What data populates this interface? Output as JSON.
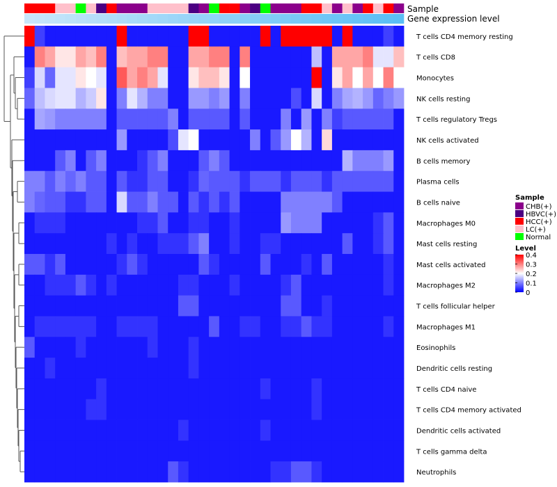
{
  "chart_data": {
    "type": "heatmap",
    "annotations": {
      "sample_label": "Sample",
      "gene_label": "Gene expression level",
      "sample_groups": [
        "HCC(+)",
        "HCC(+)",
        "HCC(+)",
        "LC(+)",
        "LC(+)",
        "Normal",
        "LC(+)",
        "HBVC(+)",
        "HCC(+)",
        "CHB(+)",
        "CHB(+)",
        "CHB(+)",
        "LC(+)",
        "LC(+)",
        "LC(+)",
        "LC(+)",
        "HBVC(+)",
        "CHB(+)",
        "Normal",
        "HCC(+)",
        "HCC(+)",
        "CHB(+)",
        "HBVC(+)",
        "Normal",
        "CHB(+)",
        "CHB(+)",
        "CHB(+)",
        "HCC(+)",
        "HCC(+)",
        "LC(+)",
        "CHB(+)",
        "LC(+)",
        "CHB(+)",
        "HCC(+)",
        "LC(+)",
        "HCC(+)",
        "CHB(+)"
      ],
      "gene_level": [
        0.05,
        0.05,
        0.05,
        0.05,
        0.05,
        0.05,
        0.05,
        0.05,
        0.05,
        0.05,
        0.05,
        0.05,
        0.05,
        0.05,
        0.05,
        0.05,
        0.05,
        0.05,
        0.05,
        0.05,
        0.05,
        0.05,
        0.05,
        0.05,
        0.05,
        0.05,
        0.05,
        0.05,
        0.05,
        0.05,
        0.05,
        0.05,
        0.05,
        0.05,
        0.05,
        0.05,
        0.05
      ]
    },
    "rows": [
      "T cells CD4 memory resting",
      "T cells CD8",
      "Monocytes",
      "NK cells resting",
      "T cells regulatory  Tregs",
      "NK cells activated",
      "B cells memory",
      "Plasma cells",
      "B cells naive",
      "Macrophages M0",
      "Mast cells resting",
      "Mast cells activated",
      "Macrophages M2",
      "T cells follicular helper",
      "Macrophages M1",
      "Eosinophils",
      "Dendritic cells resting",
      "T cells CD4 naive",
      "T cells CD4 memory activated",
      "Dendritic cells activated",
      "T cells gamma delta",
      "Neutrophils"
    ],
    "values": [
      [
        0.4,
        0.05,
        0.02,
        0.02,
        0.02,
        0.02,
        0.02,
        0.02,
        0.02,
        0.4,
        0.02,
        0.02,
        0.02,
        0.02,
        0.02,
        0.02,
        0.4,
        0.4,
        0.02,
        0.02,
        0.02,
        0.02,
        0.02,
        0.4,
        0.02,
        0.4,
        0.4,
        0.4,
        0.4,
        0.4,
        0.02,
        0.4,
        0.02,
        0.02,
        0.02,
        0.05,
        0.02
      ],
      [
        0.02,
        0.3,
        0.27,
        0.22,
        0.22,
        0.27,
        0.25,
        0.3,
        0.02,
        0.25,
        0.27,
        0.27,
        0.3,
        0.3,
        0.02,
        0.02,
        0.27,
        0.27,
        0.3,
        0.3,
        0.02,
        0.3,
        0.02,
        0.02,
        0.02,
        0.02,
        0.02,
        0.02,
        0.15,
        0.02,
        0.27,
        0.27,
        0.27,
        0.3,
        0.18,
        0.18,
        0.25
      ],
      [
        0.05,
        0.17,
        0.08,
        0.18,
        0.18,
        0.22,
        0.2,
        0.18,
        0.02,
        0.33,
        0.27,
        0.3,
        0.27,
        0.18,
        0.02,
        0.02,
        0.22,
        0.25,
        0.25,
        0.22,
        0.02,
        0.2,
        0.02,
        0.02,
        0.02,
        0.02,
        0.02,
        0.02,
        0.4,
        0.02,
        0.22,
        0.27,
        0.2,
        0.27,
        0.2,
        0.3,
        0.2
      ],
      [
        0.08,
        0.15,
        0.17,
        0.18,
        0.18,
        0.14,
        0.16,
        0.22,
        0.02,
        0.1,
        0.18,
        0.14,
        0.1,
        0.1,
        0.02,
        0.02,
        0.12,
        0.12,
        0.1,
        0.12,
        0.02,
        0.1,
        0.02,
        0.02,
        0.02,
        0.02,
        0.06,
        0.02,
        0.17,
        0.02,
        0.1,
        0.13,
        0.14,
        0.12,
        0.08,
        0.1,
        0.12
      ],
      [
        0.02,
        0.13,
        0.12,
        0.1,
        0.1,
        0.1,
        0.1,
        0.1,
        0.02,
        0.07,
        0.07,
        0.07,
        0.07,
        0.07,
        0.1,
        0.02,
        0.07,
        0.07,
        0.07,
        0.07,
        0.02,
        0.07,
        0.02,
        0.02,
        0.02,
        0.1,
        0.02,
        0.12,
        0.02,
        0.1,
        0.05,
        0.07,
        0.07,
        0.07,
        0.07,
        0.07,
        0.02
      ],
      [
        0.02,
        0.02,
        0.02,
        0.02,
        0.02,
        0.02,
        0.02,
        0.02,
        0.02,
        0.12,
        0.02,
        0.02,
        0.02,
        0.02,
        0.06,
        0.18,
        0.2,
        0.02,
        0.02,
        0.02,
        0.02,
        0.02,
        0.1,
        0.02,
        0.07,
        0.12,
        0.2,
        0.14,
        0.02,
        0.23,
        0.02,
        0.02,
        0.02,
        0.02,
        0.02,
        0.02,
        0.02
      ],
      [
        0.02,
        0.02,
        0.02,
        0.07,
        0.1,
        0.02,
        0.07,
        0.1,
        0.02,
        0.02,
        0.02,
        0.04,
        0.07,
        0.1,
        0.02,
        0.02,
        0.02,
        0.07,
        0.1,
        0.07,
        0.02,
        0.02,
        0.02,
        0.02,
        0.02,
        0.02,
        0.02,
        0.02,
        0.02,
        0.02,
        0.02,
        0.14,
        0.1,
        0.1,
        0.1,
        0.12,
        0.02
      ],
      [
        0.1,
        0.1,
        0.07,
        0.1,
        0.08,
        0.1,
        0.07,
        0.07,
        0.02,
        0.07,
        0.04,
        0.04,
        0.07,
        0.07,
        0.02,
        0.02,
        0.04,
        0.08,
        0.07,
        0.07,
        0.07,
        0.04,
        0.07,
        0.07,
        0.07,
        0.04,
        0.07,
        0.07,
        0.07,
        0.04,
        0.07,
        0.07,
        0.07,
        0.07,
        0.07,
        0.07,
        0.02
      ],
      [
        0.1,
        0.08,
        0.07,
        0.07,
        0.04,
        0.04,
        0.07,
        0.07,
        0.02,
        0.17,
        0.07,
        0.07,
        0.1,
        0.07,
        0.07,
        0.02,
        0.07,
        0.04,
        0.07,
        0.04,
        0.07,
        0.02,
        0.02,
        0.02,
        0.02,
        0.1,
        0.1,
        0.1,
        0.1,
        0.1,
        0.07,
        0.02,
        0.02,
        0.02,
        0.02,
        0.02,
        0.02
      ],
      [
        0.02,
        0.04,
        0.04,
        0.04,
        0.02,
        0.02,
        0.02,
        0.02,
        0.02,
        0.02,
        0.02,
        0.04,
        0.04,
        0.07,
        0.02,
        0.02,
        0.04,
        0.04,
        0.02,
        0.02,
        0.04,
        0.02,
        0.02,
        0.02,
        0.02,
        0.12,
        0.1,
        0.1,
        0.1,
        0.02,
        0.02,
        0.02,
        0.02,
        0.02,
        0.04,
        0.07,
        0.02
      ],
      [
        0.02,
        0.02,
        0.02,
        0.02,
        0.02,
        0.02,
        0.02,
        0.02,
        0.04,
        0.02,
        0.04,
        0.02,
        0.02,
        0.04,
        0.04,
        0.04,
        0.07,
        0.1,
        0.02,
        0.02,
        0.04,
        0.02,
        0.02,
        0.04,
        0.04,
        0.02,
        0.02,
        0.02,
        0.02,
        0.02,
        0.02,
        0.07,
        0.02,
        0.02,
        0.04,
        0.07,
        0.02
      ],
      [
        0.07,
        0.07,
        0.04,
        0.07,
        0.02,
        0.02,
        0.02,
        0.02,
        0.02,
        0.04,
        0.07,
        0.04,
        0.02,
        0.02,
        0.02,
        0.02,
        0.02,
        0.07,
        0.04,
        0.02,
        0.02,
        0.02,
        0.02,
        0.07,
        0.02,
        0.02,
        0.02,
        0.04,
        0.02,
        0.07,
        0.02,
        0.02,
        0.02,
        0.02,
        0.02,
        0.04,
        0.02
      ],
      [
        0.02,
        0.02,
        0.04,
        0.04,
        0.04,
        0.07,
        0.04,
        0.02,
        0.04,
        0.02,
        0.02,
        0.02,
        0.02,
        0.02,
        0.02,
        0.04,
        0.04,
        0.02,
        0.02,
        0.02,
        0.04,
        0.02,
        0.02,
        0.02,
        0.02,
        0.04,
        0.07,
        0.02,
        0.02,
        0.02,
        0.02,
        0.02,
        0.02,
        0.02,
        0.02,
        0.04,
        0.02
      ],
      [
        0.02,
        0.02,
        0.02,
        0.02,
        0.02,
        0.02,
        0.02,
        0.02,
        0.02,
        0.02,
        0.02,
        0.02,
        0.02,
        0.02,
        0.02,
        0.07,
        0.07,
        0.02,
        0.02,
        0.02,
        0.02,
        0.02,
        0.02,
        0.02,
        0.02,
        0.07,
        0.07,
        0.02,
        0.02,
        0.04,
        0.02,
        0.02,
        0.02,
        0.02,
        0.02,
        0.02,
        0.02
      ],
      [
        0.02,
        0.04,
        0.04,
        0.04,
        0.04,
        0.04,
        0.04,
        0.02,
        0.02,
        0.04,
        0.04,
        0.04,
        0.04,
        0.02,
        0.02,
        0.02,
        0.02,
        0.02,
        0.07,
        0.02,
        0.02,
        0.04,
        0.04,
        0.02,
        0.02,
        0.04,
        0.04,
        0.07,
        0.04,
        0.04,
        0.02,
        0.02,
        0.02,
        0.02,
        0.02,
        0.04,
        0.02
      ],
      [
        0.07,
        0.02,
        0.02,
        0.02,
        0.02,
        0.04,
        0.02,
        0.02,
        0.02,
        0.02,
        0.02,
        0.02,
        0.04,
        0.02,
        0.02,
        0.02,
        0.04,
        0.02,
        0.02,
        0.02,
        0.02,
        0.02,
        0.02,
        0.02,
        0.02,
        0.02,
        0.02,
        0.02,
        0.02,
        0.02,
        0.02,
        0.02,
        0.02,
        0.02,
        0.02,
        0.02,
        0.02
      ],
      [
        0.02,
        0.02,
        0.04,
        0.02,
        0.02,
        0.02,
        0.02,
        0.02,
        0.02,
        0.02,
        0.02,
        0.02,
        0.02,
        0.02,
        0.02,
        0.02,
        0.04,
        0.02,
        0.02,
        0.02,
        0.02,
        0.02,
        0.02,
        0.02,
        0.02,
        0.02,
        0.02,
        0.02,
        0.02,
        0.02,
        0.02,
        0.02,
        0.02,
        0.02,
        0.02,
        0.02,
        0.02
      ],
      [
        0.02,
        0.02,
        0.02,
        0.02,
        0.02,
        0.02,
        0.02,
        0.04,
        0.02,
        0.02,
        0.02,
        0.02,
        0.02,
        0.02,
        0.02,
        0.02,
        0.02,
        0.02,
        0.02,
        0.02,
        0.02,
        0.02,
        0.02,
        0.04,
        0.02,
        0.02,
        0.02,
        0.02,
        0.04,
        0.02,
        0.02,
        0.02,
        0.02,
        0.02,
        0.02,
        0.02,
        0.02
      ],
      [
        0.02,
        0.02,
        0.02,
        0.02,
        0.02,
        0.02,
        0.04,
        0.04,
        0.02,
        0.02,
        0.02,
        0.02,
        0.02,
        0.02,
        0.02,
        0.02,
        0.02,
        0.02,
        0.02,
        0.02,
        0.02,
        0.02,
        0.02,
        0.02,
        0.02,
        0.02,
        0.02,
        0.02,
        0.04,
        0.02,
        0.02,
        0.02,
        0.02,
        0.02,
        0.02,
        0.02,
        0.02
      ],
      [
        0.02,
        0.02,
        0.02,
        0.02,
        0.02,
        0.02,
        0.02,
        0.02,
        0.02,
        0.02,
        0.02,
        0.02,
        0.02,
        0.02,
        0.02,
        0.04,
        0.02,
        0.02,
        0.02,
        0.02,
        0.02,
        0.02,
        0.02,
        0.04,
        0.02,
        0.02,
        0.02,
        0.02,
        0.02,
        0.02,
        0.02,
        0.02,
        0.02,
        0.02,
        0.02,
        0.02,
        0.02
      ],
      [
        0.02,
        0.02,
        0.02,
        0.02,
        0.02,
        0.02,
        0.02,
        0.02,
        0.02,
        0.02,
        0.02,
        0.02,
        0.02,
        0.02,
        0.02,
        0.02,
        0.02,
        0.02,
        0.02,
        0.02,
        0.02,
        0.02,
        0.02,
        0.02,
        0.02,
        0.02,
        0.02,
        0.02,
        0.02,
        0.02,
        0.02,
        0.02,
        0.02,
        0.02,
        0.02,
        0.02,
        0.02
      ],
      [
        0.02,
        0.02,
        0.02,
        0.02,
        0.02,
        0.02,
        0.02,
        0.02,
        0.02,
        0.02,
        0.02,
        0.02,
        0.02,
        0.02,
        0.07,
        0.04,
        0.02,
        0.02,
        0.02,
        0.02,
        0.02,
        0.02,
        0.02,
        0.02,
        0.04,
        0.04,
        0.07,
        0.07,
        0.04,
        0.02,
        0.02,
        0.02,
        0.02,
        0.02,
        0.02,
        0.02,
        0.02
      ]
    ],
    "color_scale": {
      "title": "Level",
      "min": 0,
      "max": 0.4,
      "ticks": [
        "0.4",
        "0.3",
        "0.2",
        "0.1",
        "0"
      ],
      "low_color": "#0000ff",
      "mid_color": "#ffffff",
      "high_color": "#ff0000",
      "mid_value": 0.2
    },
    "legend": {
      "title": "Sample",
      "items": [
        {
          "label": "CHB(+)",
          "color": "#8b008b"
        },
        {
          "label": "HBVC(+)",
          "color": "#4b0082"
        },
        {
          "label": "HCC(+)",
          "color": "#ff0000"
        },
        {
          "label": "LC(+)",
          "color": "#ffc0cb"
        },
        {
          "label": "Normal",
          "color": "#00ff00"
        }
      ]
    },
    "gene_level_color": "#87cefa"
  }
}
